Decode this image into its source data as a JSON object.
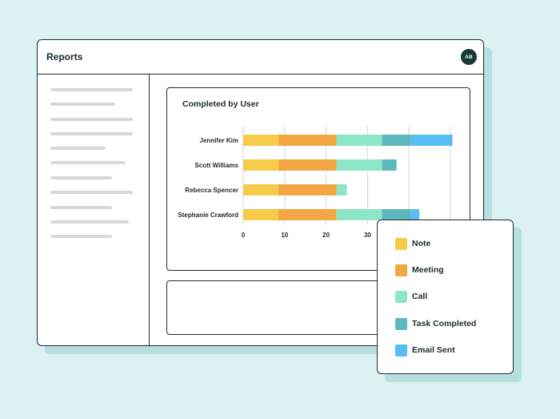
{
  "window": {
    "title": "Reports",
    "avatar_initials": "AB"
  },
  "chart_data": {
    "type": "bar",
    "orientation": "horizontal",
    "stacked": true,
    "title": "Completed by User",
    "categories": [
      "Jennifer Kim",
      "Scott Williams",
      "Rebecca Spencer",
      "Stephanie Crawford"
    ],
    "series": [
      {
        "name": "Note",
        "color": "#f6cb4a",
        "values": [
          8.5,
          8.5,
          8.5,
          8.5
        ]
      },
      {
        "name": "Meeting",
        "color": "#f3a742",
        "values": [
          14,
          14,
          14,
          14
        ]
      },
      {
        "name": "Call",
        "color": "#8ee6c8",
        "values": [
          11,
          11,
          2.5,
          11
        ]
      },
      {
        "name": "Task Completed",
        "color": "#5db8bd",
        "values": [
          7,
          3.5,
          0,
          7
        ]
      },
      {
        "name": "Email Sent",
        "color": "#57bdf2",
        "values": [
          10,
          0,
          0,
          2
        ]
      }
    ],
    "x_ticks": [
      0,
      10,
      20,
      30
    ],
    "xlim": [
      0,
      50
    ],
    "grid": true
  },
  "legend": {
    "items": [
      {
        "label": "Note",
        "color": "#f6cb4a"
      },
      {
        "label": "Meeting",
        "color": "#f3a742"
      },
      {
        "label": "Call",
        "color": "#8ee6c8"
      },
      {
        "label": "Task Completed",
        "color": "#5db8bd"
      },
      {
        "label": "Email Sent",
        "color": "#57bdf2"
      }
    ]
  },
  "colors": {
    "background": "#dcf1f2",
    "border": "#1f2a2e",
    "avatar": "#173a36",
    "placeholder": "#d6d8dc"
  }
}
